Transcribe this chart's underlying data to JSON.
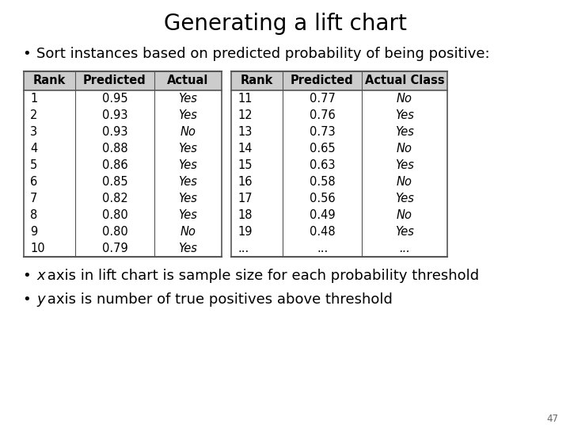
{
  "title": "Generating a lift chart",
  "bullet1": "Sort instances based on predicted probability of being positive:",
  "bullet2_italic_x": "x",
  "bullet2_rest": " axis in lift chart is sample size for each probability threshold",
  "bullet3_italic_y": "y",
  "bullet3_rest": " axis is number of true positives above threshold",
  "page_number": "47",
  "table_headers_left": [
    "Rank",
    "Predicted",
    "Actual"
  ],
  "table_headers_right": [
    "Rank",
    "Predicted",
    "Actual Class"
  ],
  "table_data_left": [
    [
      "1",
      "0.95",
      "Yes"
    ],
    [
      "2",
      "0.93",
      "Yes"
    ],
    [
      "3",
      "0.93",
      "No"
    ],
    [
      "4",
      "0.88",
      "Yes"
    ],
    [
      "5",
      "0.86",
      "Yes"
    ],
    [
      "6",
      "0.85",
      "Yes"
    ],
    [
      "7",
      "0.82",
      "Yes"
    ],
    [
      "8",
      "0.80",
      "Yes"
    ],
    [
      "9",
      "0.80",
      "No"
    ],
    [
      "10",
      "0.79",
      "Yes"
    ]
  ],
  "table_data_right": [
    [
      "11",
      "0.77",
      "No"
    ],
    [
      "12",
      "0.76",
      "Yes"
    ],
    [
      "13",
      "0.73",
      "Yes"
    ],
    [
      "14",
      "0.65",
      "No"
    ],
    [
      "15",
      "0.63",
      "Yes"
    ],
    [
      "16",
      "0.58",
      "No"
    ],
    [
      "17",
      "0.56",
      "Yes"
    ],
    [
      "18",
      "0.49",
      "No"
    ],
    [
      "19",
      "0.48",
      "Yes"
    ],
    [
      "...",
      "...",
      "..."
    ]
  ],
  "header_bg": "#cccccc",
  "table_border_color": "#555555",
  "bg_color": "#ffffff",
  "title_fontsize": 20,
  "body_fontsize": 13,
  "table_fontsize": 10.5
}
